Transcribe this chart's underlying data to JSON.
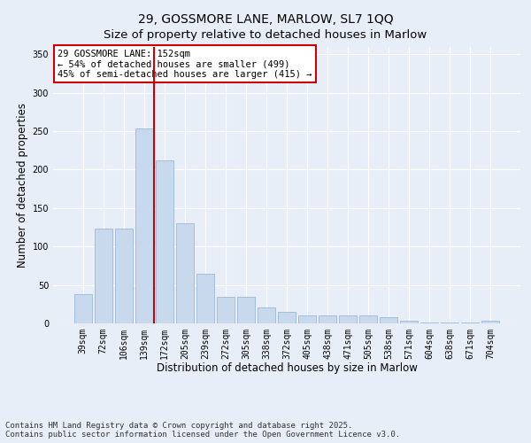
{
  "title": "29, GOSSMORE LANE, MARLOW, SL7 1QQ",
  "subtitle": "Size of property relative to detached houses in Marlow",
  "xlabel": "Distribution of detached houses by size in Marlow",
  "ylabel": "Number of detached properties",
  "categories": [
    "39sqm",
    "72sqm",
    "106sqm",
    "139sqm",
    "172sqm",
    "205sqm",
    "239sqm",
    "272sqm",
    "305sqm",
    "338sqm",
    "372sqm",
    "405sqm",
    "438sqm",
    "471sqm",
    "505sqm",
    "538sqm",
    "571sqm",
    "604sqm",
    "638sqm",
    "671sqm",
    "704sqm"
  ],
  "values": [
    38,
    123,
    123,
    253,
    212,
    130,
    65,
    35,
    35,
    21,
    15,
    10,
    10,
    10,
    10,
    8,
    4,
    1,
    1,
    1,
    4
  ],
  "bar_color": "#c8d9ee",
  "bar_edge_color": "#9ab8d8",
  "vline_x_index": 3.5,
  "vline_color": "#cc0000",
  "annotation_text": "29 GOSSMORE LANE: 152sqm\n← 54% of detached houses are smaller (499)\n45% of semi-detached houses are larger (415) →",
  "annotation_box_color": "#ffffff",
  "annotation_box_edge_color": "#cc0000",
  "ylim": [
    0,
    360
  ],
  "yticks": [
    0,
    50,
    100,
    150,
    200,
    250,
    300,
    350
  ],
  "background_color": "#e8eef7",
  "plot_bg_color": "#e8eef7",
  "footer_text": "Contains HM Land Registry data © Crown copyright and database right 2025.\nContains public sector information licensed under the Open Government Licence v3.0.",
  "title_fontsize": 10,
  "axis_label_fontsize": 8.5,
  "tick_fontsize": 7,
  "annotation_fontsize": 7.5,
  "footer_fontsize": 6.5
}
